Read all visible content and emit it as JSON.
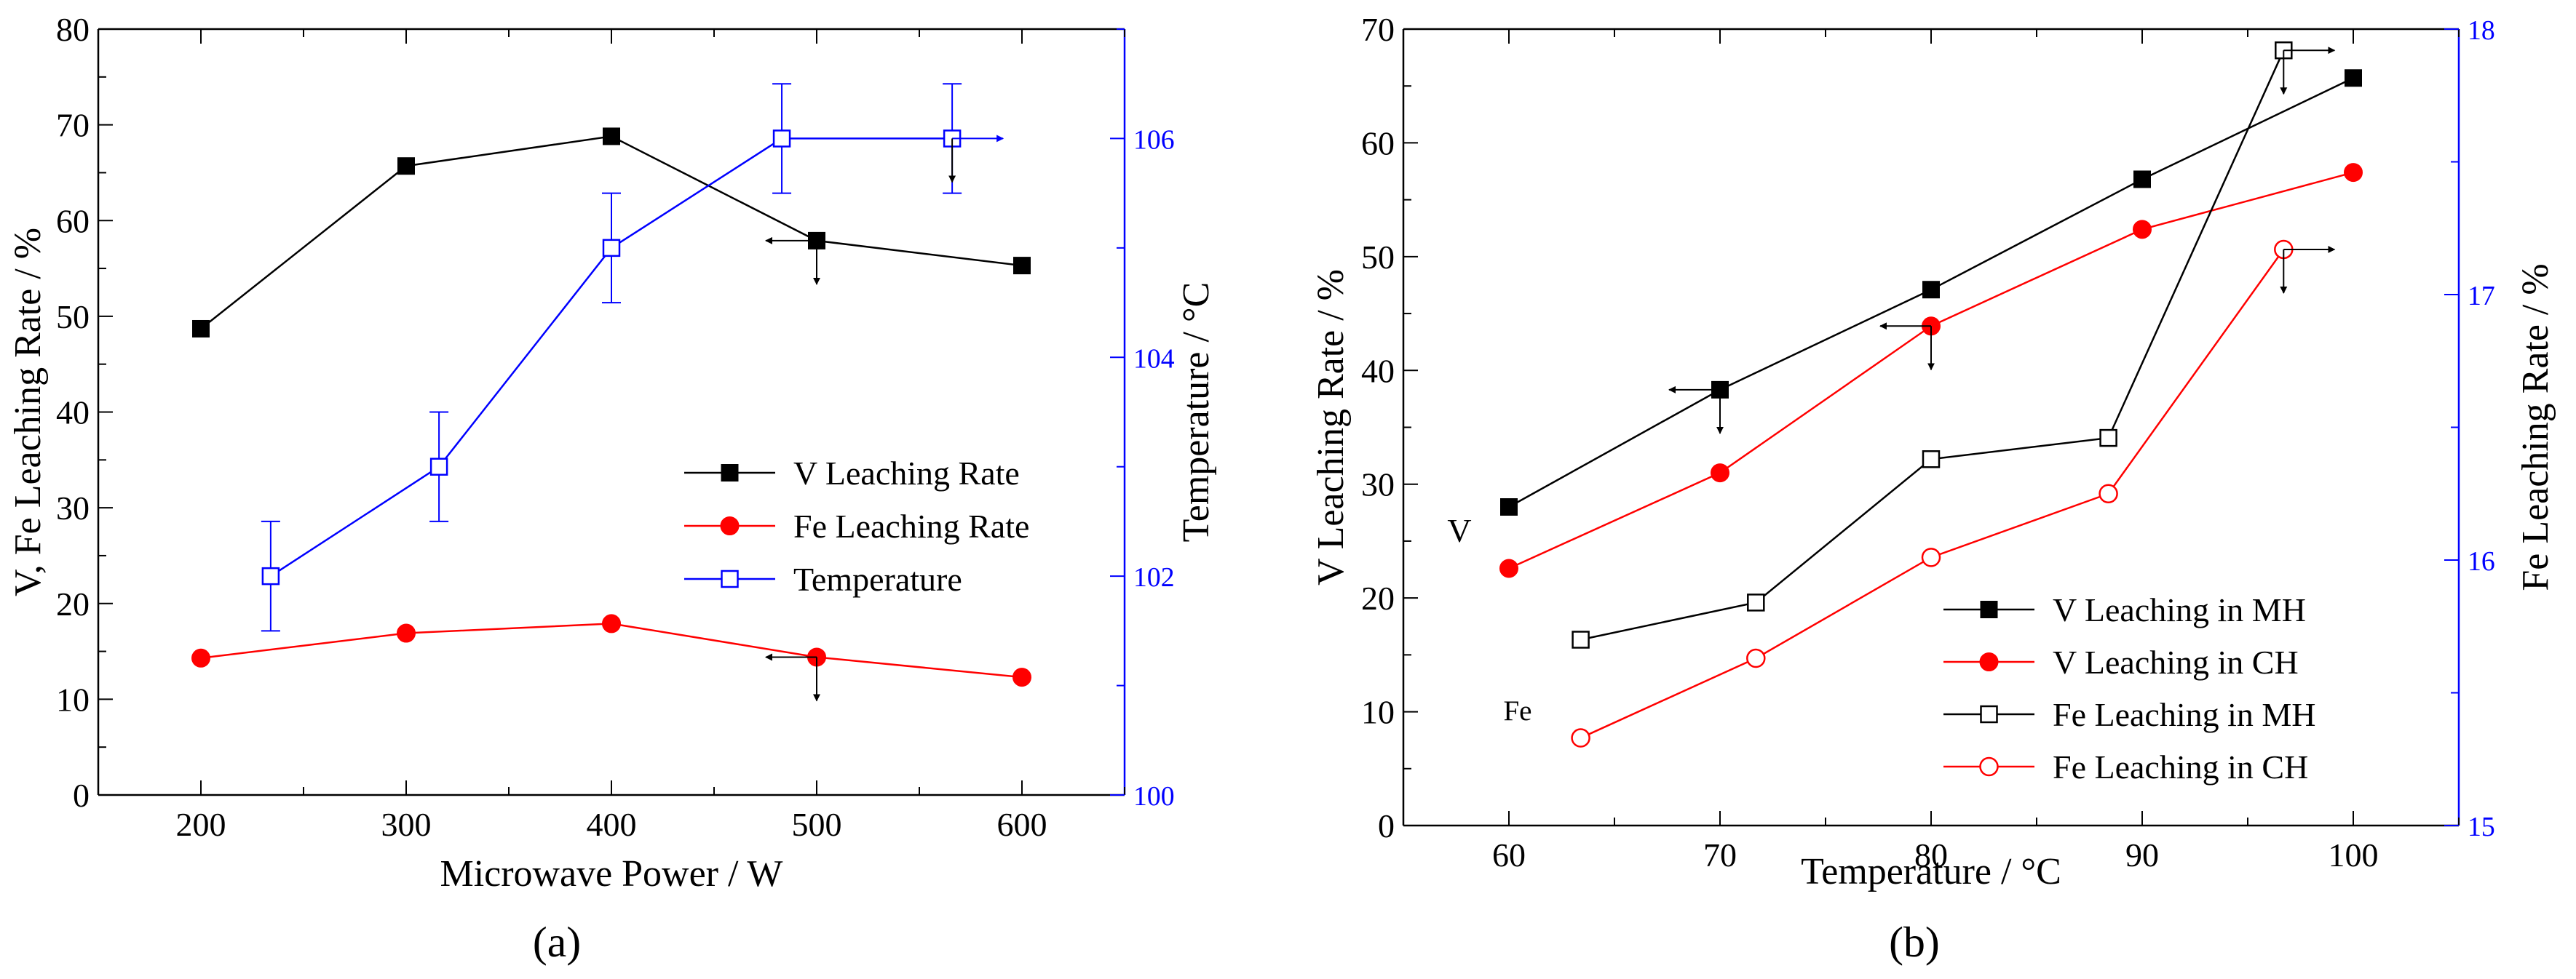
{
  "chart_data": [
    {
      "panel_label": "(a)",
      "type": "line",
      "xlabel": "Microwave Power / W",
      "ylabel_left": "V, Fe Leaching Rate / %",
      "ylabel_right": "Temperature / °C",
      "xlim": [
        150,
        650
      ],
      "xticks": [
        200,
        300,
        400,
        500,
        600
      ],
      "ylim_left": [
        0,
        80
      ],
      "yticks_left": [
        0,
        10,
        20,
        30,
        40,
        50,
        60,
        70,
        80
      ],
      "ylim_right": [
        100,
        107
      ],
      "yticks_right": [
        100,
        102,
        104,
        106
      ],
      "right_axis_color": "#0000ff",
      "legend_position": "center-right",
      "series": [
        {
          "name": "V Leaching Rate",
          "axis": "left",
          "color": "#000000",
          "marker": "square-filled",
          "x": [
            200,
            300,
            400,
            500,
            600
          ],
          "values": [
            48.7,
            65.7,
            68.8,
            57.9,
            55.3
          ]
        },
        {
          "name": "Fe Leaching Rate",
          "axis": "left",
          "color": "#ff0000",
          "marker": "circle-filled",
          "x": [
            200,
            300,
            400,
            500,
            600
          ],
          "values": [
            14.3,
            16.9,
            17.9,
            14.4,
            12.3
          ]
        },
        {
          "name": "Temperature",
          "axis": "right",
          "color": "#0000ff",
          "marker": "square-open",
          "x": [
            234,
            316,
            400,
            483,
            566
          ],
          "values": [
            102.0,
            103.0,
            105.0,
            106.0,
            106.0
          ],
          "error": [
            0.5,
            0.5,
            0.5,
            0.5,
            0.5
          ]
        }
      ],
      "annotations": [
        {
          "type": "axis-arrow",
          "at": [
            500,
            57.9
          ],
          "axis": "left",
          "direction": "left",
          "series": "V Leaching Rate"
        },
        {
          "type": "axis-arrow",
          "at": [
            500,
            14.4
          ],
          "axis": "left",
          "direction": "left",
          "series": "Fe Leaching Rate"
        },
        {
          "type": "axis-arrow",
          "at": [
            566,
            106.0
          ],
          "axis": "right",
          "direction": "right",
          "series": "Temperature"
        }
      ]
    },
    {
      "panel_label": "(b)",
      "type": "line",
      "xlabel": "Temperature / °C",
      "ylabel_left": "V Leaching Rate / %",
      "ylabel_right": "Fe Leaching Rate / %",
      "xlim": [
        55,
        105
      ],
      "xticks": [
        60,
        70,
        80,
        90,
        100
      ],
      "ylim_left": [
        0,
        70
      ],
      "yticks_left": [
        0,
        10,
        20,
        30,
        40,
        50,
        60,
        70
      ],
      "ylim_right": [
        15,
        18
      ],
      "yticks_right": [
        15,
        16,
        17,
        18
      ],
      "right_axis_color": "#0000ff",
      "legend_position": "bottom-right",
      "text_labels": [
        "V",
        "Fe"
      ],
      "series": [
        {
          "name": "V Leaching in MH",
          "axis": "left",
          "color": "#000000",
          "marker": "square-filled",
          "x": [
            60,
            70,
            80,
            90,
            100
          ],
          "values": [
            28.0,
            38.3,
            47.1,
            56.8,
            65.7
          ]
        },
        {
          "name": "V Leaching in CH",
          "axis": "left",
          "color": "#ff0000",
          "marker": "circle-filled",
          "x": [
            60,
            70,
            80,
            90,
            100
          ],
          "values": [
            22.6,
            31.0,
            43.9,
            52.4,
            57.4
          ]
        },
        {
          "name": "Fe Leaching in MH",
          "axis": "right",
          "color": "#000000",
          "marker": "square-open",
          "x": [
            63.4,
            71.7,
            80.0,
            88.4,
            96.7
          ],
          "values": [
            15.7,
            15.84,
            16.38,
            16.46,
            17.92
          ]
        },
        {
          "name": "Fe Leaching in CH",
          "axis": "right",
          "color": "#ff0000",
          "marker": "circle-open",
          "x": [
            63.4,
            71.7,
            80.0,
            88.4,
            96.7
          ],
          "values": [
            15.33,
            15.63,
            16.01,
            16.25,
            17.17
          ]
        }
      ],
      "annotations": [
        {
          "type": "axis-arrow",
          "at": [
            70,
            38.3
          ],
          "axis": "left",
          "direction": "left",
          "series": "V Leaching in MH"
        },
        {
          "type": "axis-arrow",
          "at": [
            80,
            43.9
          ],
          "axis": "left",
          "direction": "left",
          "series": "V Leaching in CH"
        },
        {
          "type": "axis-arrow",
          "at": [
            96.7,
            17.92
          ],
          "axis": "right",
          "direction": "right",
          "series": "Fe Leaching in MH"
        },
        {
          "type": "axis-arrow",
          "at": [
            96.7,
            17.17
          ],
          "axis": "right",
          "direction": "right",
          "series": "Fe Leaching in CH"
        }
      ]
    }
  ]
}
